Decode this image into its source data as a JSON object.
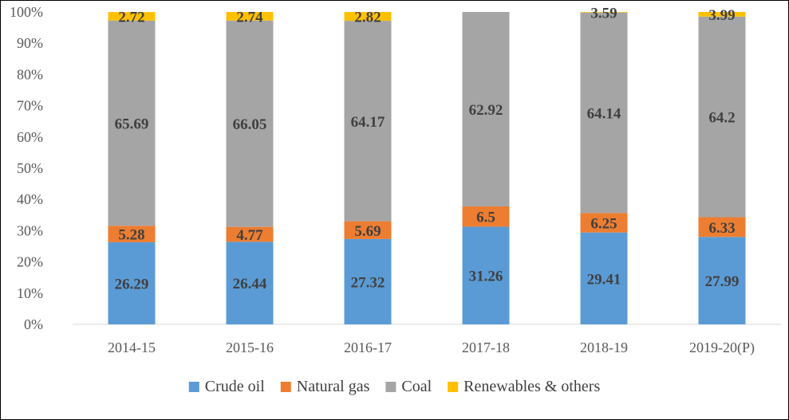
{
  "chart_data": {
    "type": "bar",
    "stacked": true,
    "categories": [
      "2014-15",
      "2015-16",
      "2016-17",
      "2017-18",
      "2018-19",
      "2019-20(P)"
    ],
    "series": [
      {
        "name": "Crude oil",
        "color": "#5B9BD5",
        "values": [
          26.29,
          26.44,
          27.32,
          31.26,
          29.41,
          27.99
        ]
      },
      {
        "name": "Natural gas",
        "color": "#ED7D31",
        "values": [
          5.28,
          4.77,
          5.69,
          6.5,
          6.25,
          6.33
        ]
      },
      {
        "name": "Coal",
        "color": "#A5A5A5",
        "values": [
          65.69,
          66.05,
          64.17,
          62.92,
          64.14,
          64.2
        ]
      },
      {
        "name": "Renewables & others",
        "color": "#FFC000",
        "values": [
          2.72,
          2.74,
          2.82,
          null,
          3.59,
          3.99
        ]
      }
    ],
    "yticks": [
      "0%",
      "10%",
      "20%",
      "30%",
      "40%",
      "50%",
      "60%",
      "70%",
      "80%",
      "90%",
      "100%"
    ],
    "ylim": [
      0,
      100
    ],
    "title": "",
    "xlabel": "",
    "ylabel": "",
    "legend_position": "bottom",
    "grid": false
  }
}
